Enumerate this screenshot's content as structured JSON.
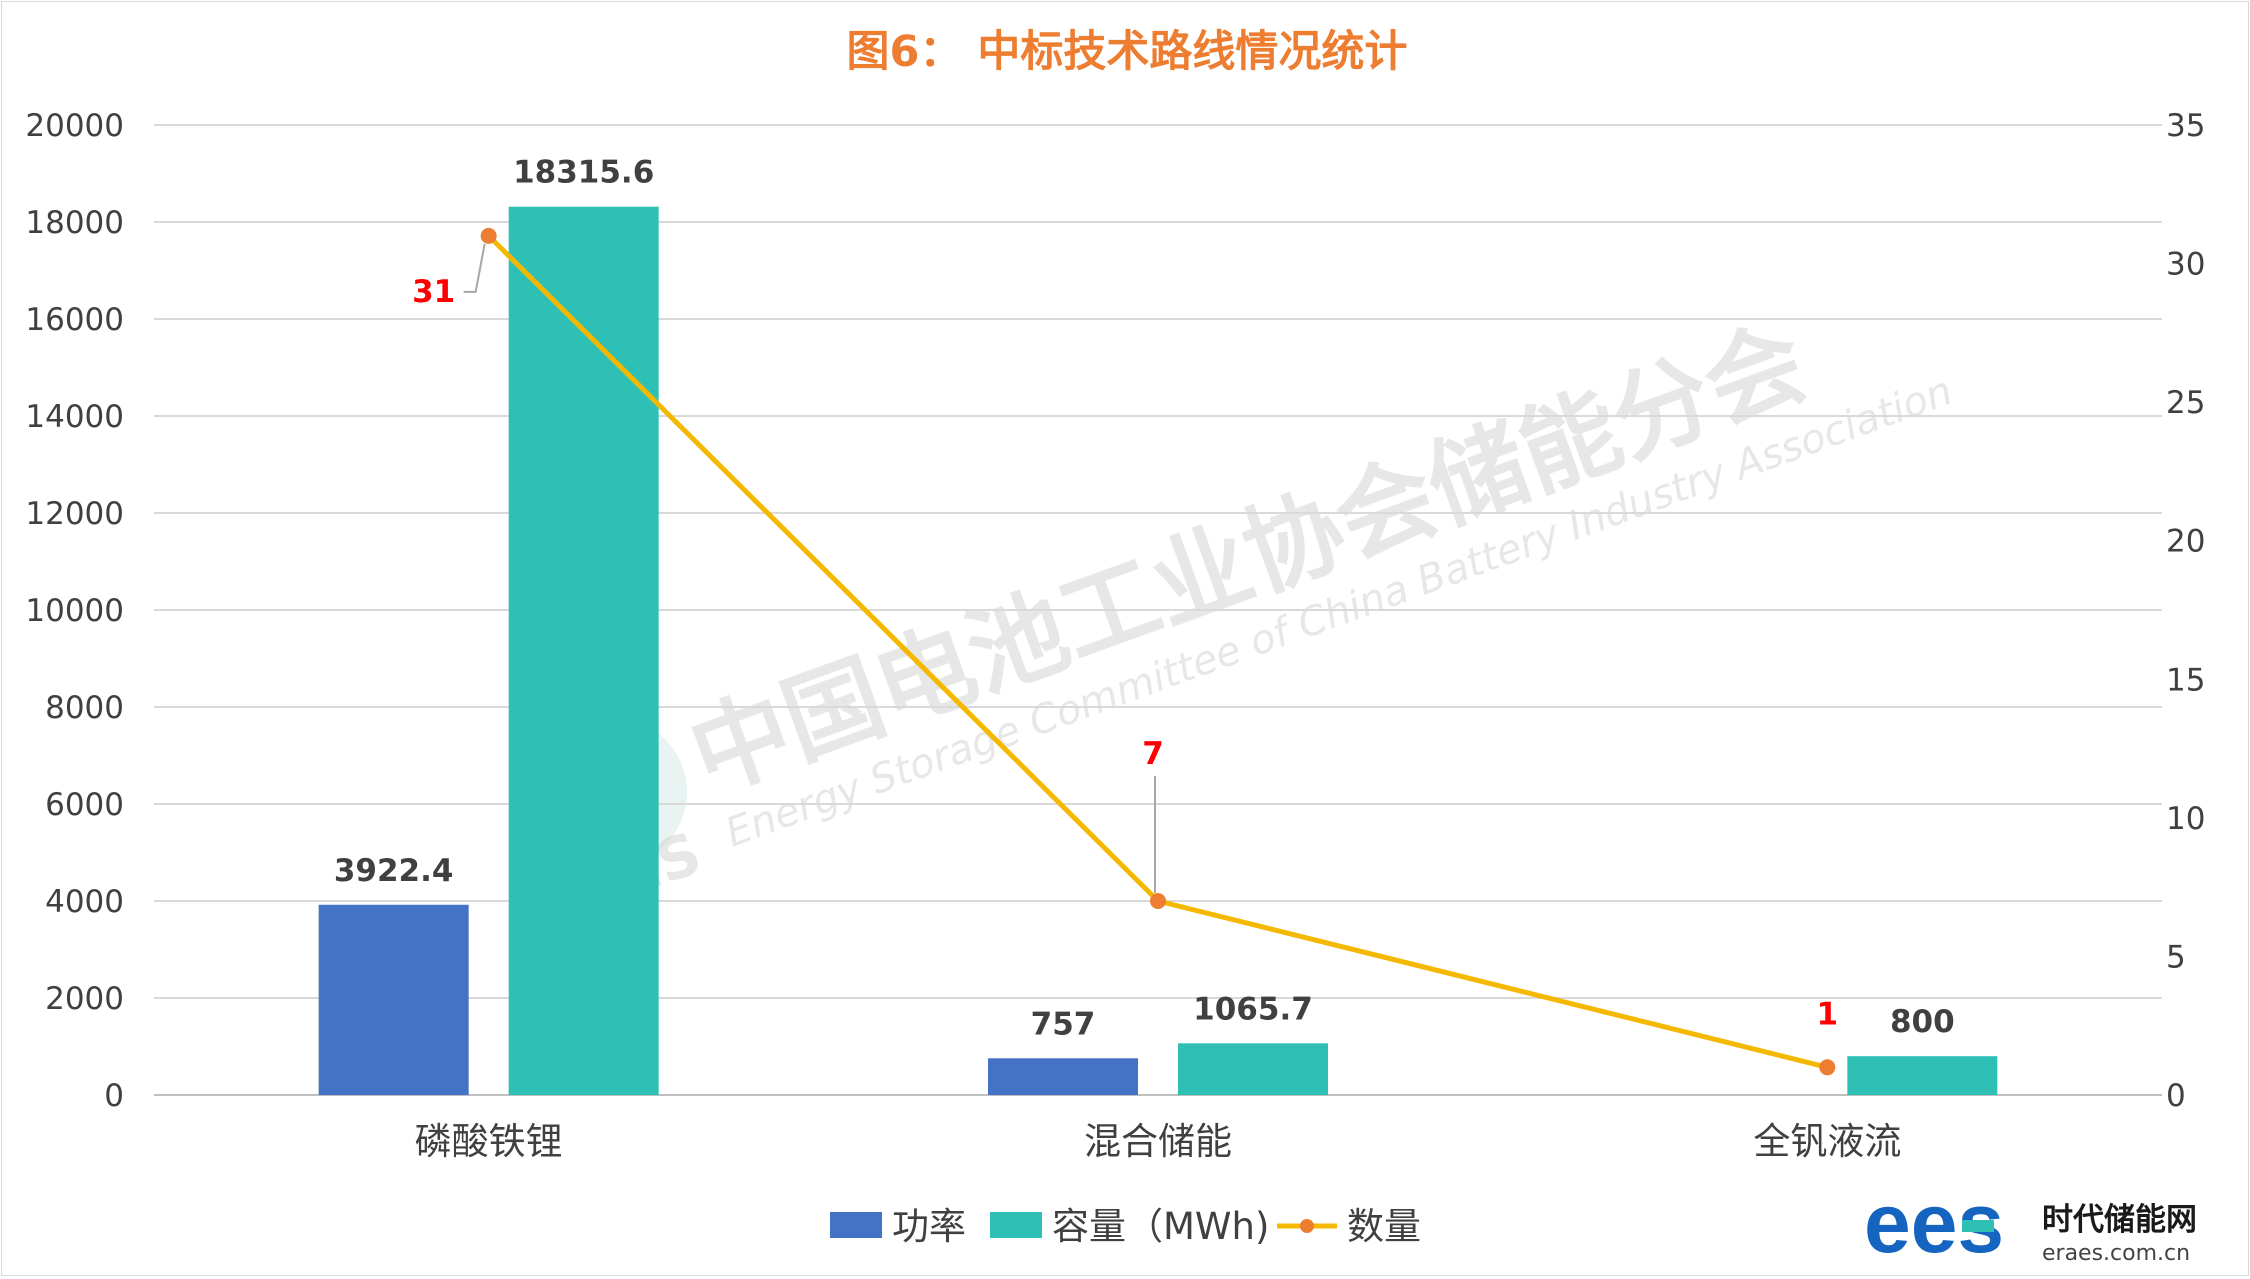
{
  "chart_data": {
    "type": "bar",
    "title": "图6： 中标技术路线情况统计",
    "categories": [
      "磷酸铁锂",
      "混合储能",
      "全钒液流"
    ],
    "series": [
      {
        "name": "功率",
        "type": "bar",
        "axis": "left",
        "values": [
          3922.4,
          757,
          null
        ],
        "labels": [
          "3922.4",
          "757",
          ""
        ],
        "color": "#4472C4"
      },
      {
        "name": "容量（MWh)",
        "type": "bar",
        "axis": "left",
        "values": [
          18315.6,
          1065.7,
          800
        ],
        "labels": [
          "18315.6",
          "1065.7",
          "800"
        ],
        "color": "#2EC0B5"
      },
      {
        "name": "数量",
        "type": "line",
        "axis": "right",
        "values": [
          31,
          7,
          1
        ],
        "labels": [
          "31",
          "7",
          "1"
        ],
        "color": "#F5B800",
        "marker_color": "#ED7D31"
      }
    ],
    "ylim": [
      0,
      20000
    ],
    "yticks": [
      "0",
      "2000",
      "4000",
      "6000",
      "8000",
      "10000",
      "12000",
      "14000",
      "16000",
      "18000",
      "20000"
    ],
    "y2lim": [
      0,
      35
    ],
    "y2ticks": [
      "0",
      "5",
      "10",
      "15",
      "20",
      "25",
      "30",
      "35"
    ],
    "grid": true,
    "legend_position": "bottom"
  },
  "watermark": {
    "cn": "中国电池工业协会储能分会",
    "en": "Energy Storage Committee of China Battery Industry Association",
    "logo": "CBES"
  },
  "brand": {
    "logo_text": "ees",
    "name": "时代储能网",
    "url": "eraes.com.cn"
  }
}
